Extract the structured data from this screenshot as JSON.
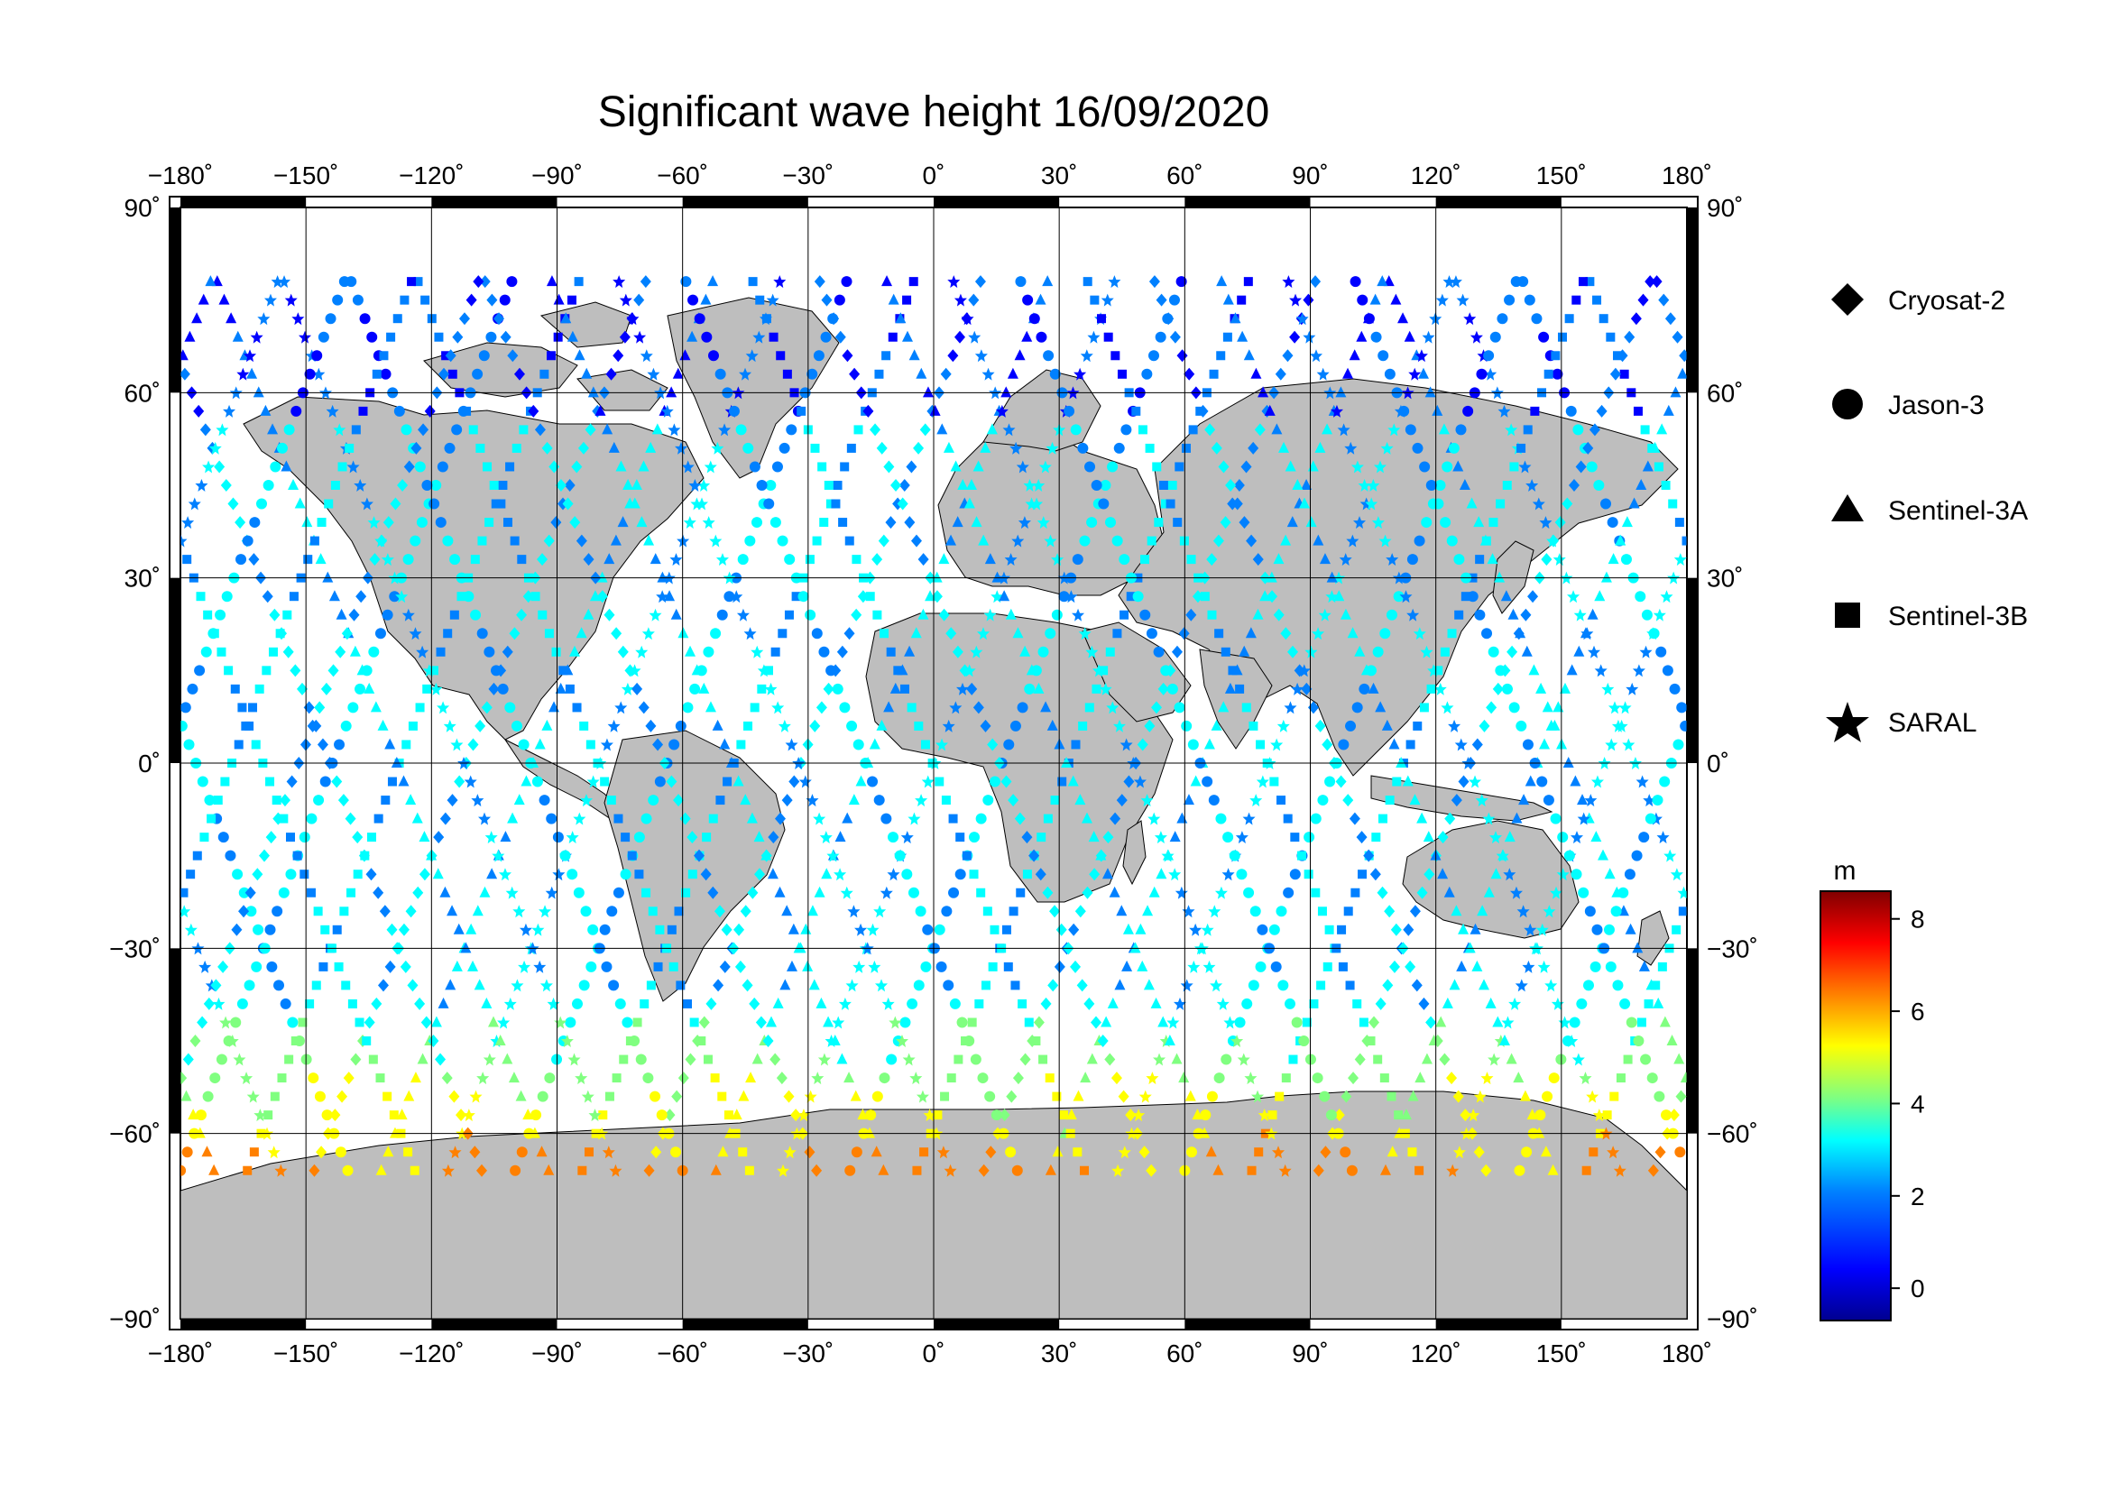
{
  "title": "Significant wave height 16/09/2020",
  "map": {
    "lon_range": [
      -180,
      180
    ],
    "lat_range": [
      -90,
      90
    ],
    "lon_ticks": [
      "−180˚",
      "−150˚",
      "−120˚",
      "−90˚",
      "−60˚",
      "−30˚",
      "0˚",
      "30˚",
      "60˚",
      "90˚",
      "120˚",
      "150˚",
      "180˚"
    ],
    "lat_ticks": [
      "90˚",
      "60˚",
      "30˚",
      "0˚",
      "−30˚",
      "−60˚",
      "−90˚"
    ],
    "grid": true,
    "land_color": "#bebebe",
    "ocean_color": "#ffffff"
  },
  "legend": {
    "items": [
      {
        "label": "Cryosat-2",
        "icon": "diamond-icon"
      },
      {
        "label": "Jason-3",
        "icon": "circle-icon"
      },
      {
        "label": "Sentinel-3A",
        "icon": "triangle-icon"
      },
      {
        "label": "Sentinel-3B",
        "icon": "square-icon"
      },
      {
        "label": "SARAL",
        "icon": "star-icon"
      }
    ]
  },
  "colorbar": {
    "unit": "m",
    "range": [
      -0.7,
      8.6
    ],
    "ticks": [
      "0",
      "2",
      "4",
      "6",
      "8"
    ],
    "colors": [
      "#00008f",
      "#0000ff",
      "#0080ff",
      "#00ffff",
      "#80ff80",
      "#ffff00",
      "#ff8000",
      "#ff0000",
      "#800000"
    ]
  }
}
